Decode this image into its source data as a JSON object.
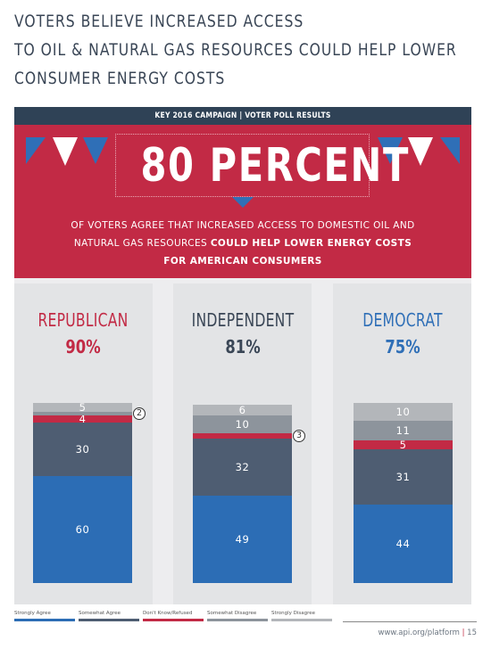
{
  "title_lines": [
    "VOTERS BELIEVE INCREASED ACCESS",
    "TO OIL & NATURAL GAS RESOURCES COULD HELP LOWER",
    "CONSUMER ENERGY COSTS"
  ],
  "header_bar": "KEY 2016 CAMPAIGN  |  VOTER POLL RESULTS",
  "hero": {
    "headline": "80 PERCENT",
    "text_line1": "OF VOTERS AGREE THAT INCREASED ACCESS TO DOMESTIC OIL AND",
    "text_line2_normal": "NATURAL GAS RESOURCES ",
    "text_line2_bold": "COULD HELP LOWER ENERGY COSTS",
    "text_line3_bold": "FOR AMERICAN CONSUMERS"
  },
  "colors": {
    "republican": "#c22a45",
    "independent": "#3a4656",
    "democrat": "#2f6fb7"
  },
  "chart_data": {
    "type": "bar",
    "stacked": true,
    "categories": [
      "REPUBLICAN",
      "INDEPENDENT",
      "DEMOCRAT"
    ],
    "category_totals": [
      "90%",
      "81%",
      "75%"
    ],
    "series": [
      {
        "name": "Strongly Agree",
        "color": "#2c6db5",
        "values": [
          60,
          49,
          44
        ]
      },
      {
        "name": "Somewhat Agree",
        "color": "#4e5d72",
        "values": [
          30,
          32,
          31
        ]
      },
      {
        "name": "Don't Know/Refused",
        "color": "#c22a45",
        "values": [
          4,
          3,
          5
        ]
      },
      {
        "name": "Somewhat Disagree",
        "color": "#8d949c",
        "values": [
          2,
          10,
          11
        ]
      },
      {
        "name": "Strongly Disagree",
        "color": "#b3b6ba",
        "values": [
          5,
          6,
          10
        ]
      }
    ],
    "ylim": [
      0,
      101
    ]
  }
}
